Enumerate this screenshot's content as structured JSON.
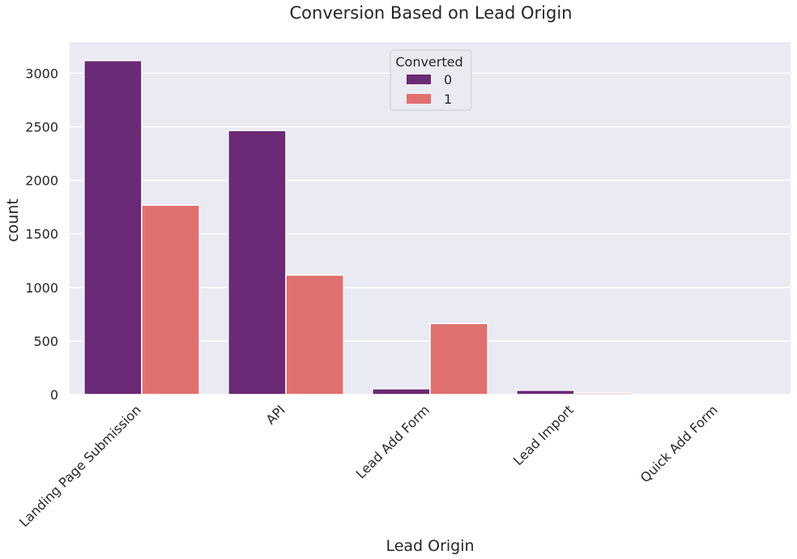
{
  "chart_data": {
    "type": "bar",
    "title": "Conversion Based on Lead Origin",
    "xlabel": "Lead Origin",
    "ylabel": "count",
    "categories": [
      "Landing Page Submission",
      "API",
      "Lead Add Form",
      "Lead Import",
      "Quick Add Form"
    ],
    "series": [
      {
        "name": "0",
        "color": "#6a2a75",
        "values": [
          3118,
          2465,
          54,
          40,
          0
        ]
      },
      {
        "name": "1",
        "color": "#e0706e",
        "values": [
          1768,
          1115,
          663,
          15,
          1
        ]
      }
    ],
    "ylim": [
      0,
      3290
    ],
    "yticks": [
      0,
      500,
      1000,
      1500,
      2000,
      2500,
      3000
    ],
    "grid": true,
    "legend": {
      "title": "Converted",
      "placement": "top-center"
    },
    "colors": {
      "plot_background": "#eaeaf2",
      "grid": "#ffffff"
    }
  }
}
